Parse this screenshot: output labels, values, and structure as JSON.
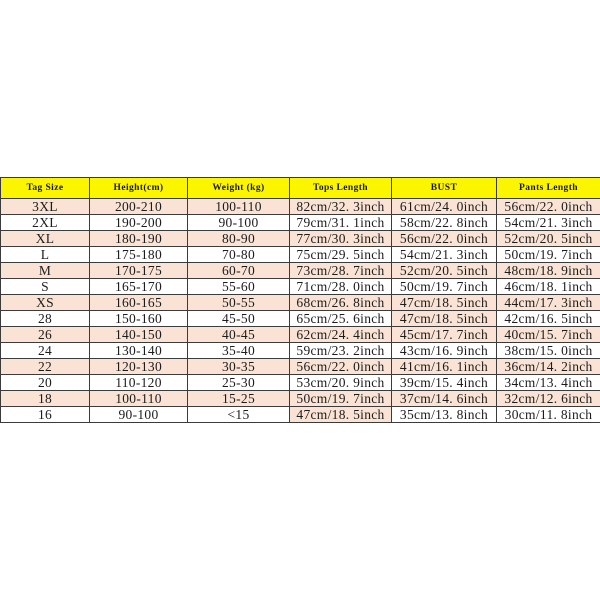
{
  "page": {
    "background": "#ffffff"
  },
  "colors": {
    "header_bg": "#fcf500",
    "row_shade": "#fae3d4",
    "border": "#3b3b3b",
    "text": "#1c1c1c",
    "header_text": "#191919"
  },
  "chart_data": {
    "type": "table",
    "title": "",
    "columns": [
      "Tag Size",
      "Height(cm)",
      "Weight (kg)",
      "Tops Length",
      "BUST",
      "Pants Length"
    ],
    "rows": [
      {
        "cells": [
          "3XL",
          "200-210",
          "100-110",
          "82cm/32. 3inch",
          "61cm/24. 0inch",
          "56cm/22. 0inch"
        ],
        "shaded": true,
        "shaded_cells": []
      },
      {
        "cells": [
          "2XL",
          "190-200",
          "90-100",
          "79cm/31. 1inch",
          "58cm/22. 8inch",
          "54cm/21. 3inch"
        ],
        "shaded": false,
        "shaded_cells": []
      },
      {
        "cells": [
          "XL",
          "180-190",
          "80-90",
          "77cm/30. 3inch",
          "56cm/22. 0inch",
          "52cm/20. 5inch"
        ],
        "shaded": true,
        "shaded_cells": []
      },
      {
        "cells": [
          "L",
          "175-180",
          "70-80",
          "75cm/29. 5inch",
          "54cm/21. 3inch",
          "50cm/19. 7inch"
        ],
        "shaded": false,
        "shaded_cells": []
      },
      {
        "cells": [
          "M",
          "170-175",
          "60-70",
          "73cm/28. 7inch",
          "52cm/20. 5inch",
          "48cm/18. 9inch"
        ],
        "shaded": true,
        "shaded_cells": []
      },
      {
        "cells": [
          "S",
          "165-170",
          "55-60",
          "71cm/28. 0inch",
          "50cm/19. 7inch",
          "46cm/18. 1inch"
        ],
        "shaded": false,
        "shaded_cells": []
      },
      {
        "cells": [
          "XS",
          "160-165",
          "50-55",
          "68cm/26. 8inch",
          "47cm/18. 5inch",
          "44cm/17. 3inch"
        ],
        "shaded": true,
        "shaded_cells": []
      },
      {
        "cells": [
          "28",
          "150-160",
          "45-50",
          "65cm/25. 6inch",
          "47cm/18. 5inch",
          "42cm/16. 5inch"
        ],
        "shaded": false,
        "shaded_cells": [
          4
        ]
      },
      {
        "cells": [
          "26",
          "140-150",
          "40-45",
          "62cm/24. 4inch",
          "45cm/17. 7inch",
          "40cm/15. 7inch"
        ],
        "shaded": true,
        "shaded_cells": []
      },
      {
        "cells": [
          "24",
          "130-140",
          "35-40",
          "59cm/23. 2inch",
          "43cm/16. 9inch",
          "38cm/15. 0inch"
        ],
        "shaded": false,
        "shaded_cells": []
      },
      {
        "cells": [
          "22",
          "120-130",
          "30-35",
          "56cm/22. 0inch",
          "41cm/16. 1inch",
          "36cm/14. 2inch"
        ],
        "shaded": true,
        "shaded_cells": []
      },
      {
        "cells": [
          "20",
          "110-120",
          "25-30",
          "53cm/20. 9inch",
          "39cm/15. 4inch",
          "34cm/13. 4inch"
        ],
        "shaded": false,
        "shaded_cells": []
      },
      {
        "cells": [
          "18",
          "100-110",
          "15-25",
          "50cm/19. 7inch",
          "37cm/14. 6inch",
          "32cm/12. 6inch"
        ],
        "shaded": true,
        "shaded_cells": []
      },
      {
        "cells": [
          "16",
          "90-100",
          "<15",
          "47cm/18. 5inch",
          "35cm/13. 8inch",
          "30cm/11. 8inch"
        ],
        "shaded": false,
        "shaded_cells": [
          3
        ]
      }
    ]
  }
}
